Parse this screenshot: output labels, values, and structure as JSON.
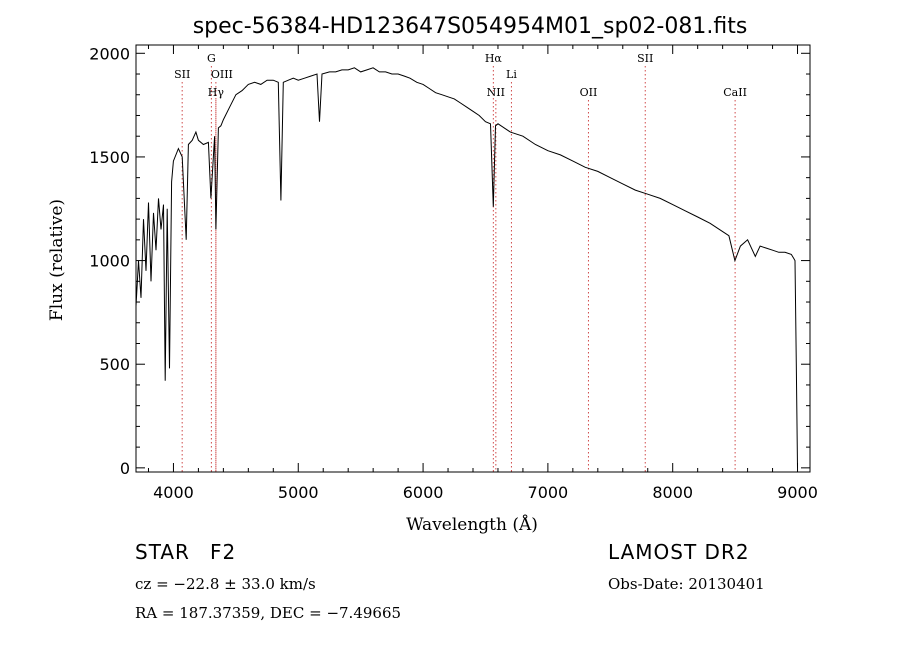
{
  "chart_data": {
    "type": "line",
    "title": "spec-56384-HD123647S054954M01_sp02-081.fits",
    "xlabel": "Wavelength (Å)",
    "ylabel": "Flux (relative)",
    "xlim": [
      3700,
      9100
    ],
    "ylim": [
      -20,
      2040
    ],
    "x_ticks": [
      4000,
      5000,
      6000,
      7000,
      8000,
      9000
    ],
    "y_ticks": [
      0,
      500,
      1000,
      1500,
      2000
    ],
    "grid": false,
    "series": [
      {
        "color": "#000000",
        "x": [
          3700,
          3720,
          3740,
          3760,
          3780,
          3800,
          3820,
          3840,
          3860,
          3880,
          3900,
          3920,
          3934,
          3950,
          3968,
          3985,
          4000,
          4040,
          4070,
          4102,
          4120,
          4150,
          4180,
          4200,
          4240,
          4280,
          4300,
          4330,
          4340,
          4360,
          4380,
          4400,
          4450,
          4500,
          4550,
          4600,
          4650,
          4700,
          4750,
          4800,
          4840,
          4861,
          4880,
          4920,
          4960,
          5000,
          5050,
          5100,
          5150,
          5170,
          5190,
          5250,
          5300,
          5350,
          5400,
          5450,
          5500,
          5550,
          5600,
          5650,
          5700,
          5750,
          5800,
          5850,
          5895,
          5950,
          6000,
          6050,
          6100,
          6150,
          6200,
          6250,
          6300,
          6350,
          6400,
          6450,
          6500,
          6540,
          6563,
          6580,
          6600,
          6650,
          6700,
          6800,
          6900,
          7000,
          7100,
          7200,
          7300,
          7400,
          7500,
          7600,
          7700,
          7800,
          7900,
          8000,
          8100,
          8200,
          8300,
          8400,
          8450,
          8498,
          8542,
          8600,
          8662,
          8700,
          8750,
          8800,
          8850,
          8900,
          8950,
          8970,
          8980,
          8990,
          9000
        ],
        "y": [
          780,
          1000,
          820,
          1200,
          950,
          1280,
          900,
          1230,
          1050,
          1300,
          1150,
          1270,
          420,
          1250,
          480,
          1380,
          1480,
          1540,
          1500,
          1100,
          1560,
          1580,
          1620,
          1580,
          1560,
          1570,
          1300,
          1600,
          1150,
          1640,
          1650,
          1680,
          1740,
          1800,
          1820,
          1850,
          1860,
          1850,
          1870,
          1870,
          1860,
          1290,
          1860,
          1870,
          1880,
          1870,
          1880,
          1890,
          1900,
          1670,
          1900,
          1910,
          1910,
          1920,
          1920,
          1930,
          1910,
          1920,
          1930,
          1910,
          1910,
          1900,
          1900,
          1890,
          1880,
          1860,
          1850,
          1830,
          1810,
          1800,
          1790,
          1780,
          1760,
          1740,
          1720,
          1700,
          1670,
          1660,
          1260,
          1650,
          1660,
          1640,
          1620,
          1600,
          1560,
          1530,
          1510,
          1480,
          1450,
          1430,
          1400,
          1370,
          1340,
          1320,
          1300,
          1270,
          1240,
          1210,
          1180,
          1140,
          1120,
          1000,
          1070,
          1100,
          1020,
          1070,
          1060,
          1050,
          1040,
          1040,
          1030,
          1010,
          1000,
          500,
          0
        ]
      }
    ],
    "line_markers": [
      {
        "label": "SII",
        "x": 4070,
        "row": 2,
        "dx": 0
      },
      {
        "label": "G",
        "x": 4304,
        "row": 1,
        "dx": 0
      },
      {
        "label": "OIII",
        "x": 4340,
        "row": 2,
        "dx": 6
      },
      {
        "label": "Hγ",
        "x": 4340,
        "row": 3,
        "dx": 0
      },
      {
        "label": "Hα",
        "x": 6563,
        "row": 1,
        "dx": 0
      },
      {
        "label": "NII",
        "x": 6583,
        "row": 3,
        "dx": 0
      },
      {
        "label": "Li",
        "x": 6708,
        "row": 2,
        "dx": 0
      },
      {
        "label": "OII",
        "x": 7325,
        "row": 3,
        "dx": 0
      },
      {
        "label": "SII",
        "x": 7780,
        "row": 1,
        "dx": 0
      },
      {
        "label": "CaII",
        "x": 8500,
        "row": 3,
        "dx": 0
      }
    ]
  },
  "info": {
    "object_class": "STAR",
    "subclass": "F2",
    "survey": "LAMOST DR2",
    "cz": "cz = −22.8 ± 33.0 km/s",
    "obs_date": "Obs-Date: 20130401",
    "coords": "RA = 187.37359, DEC =  −7.49665"
  }
}
